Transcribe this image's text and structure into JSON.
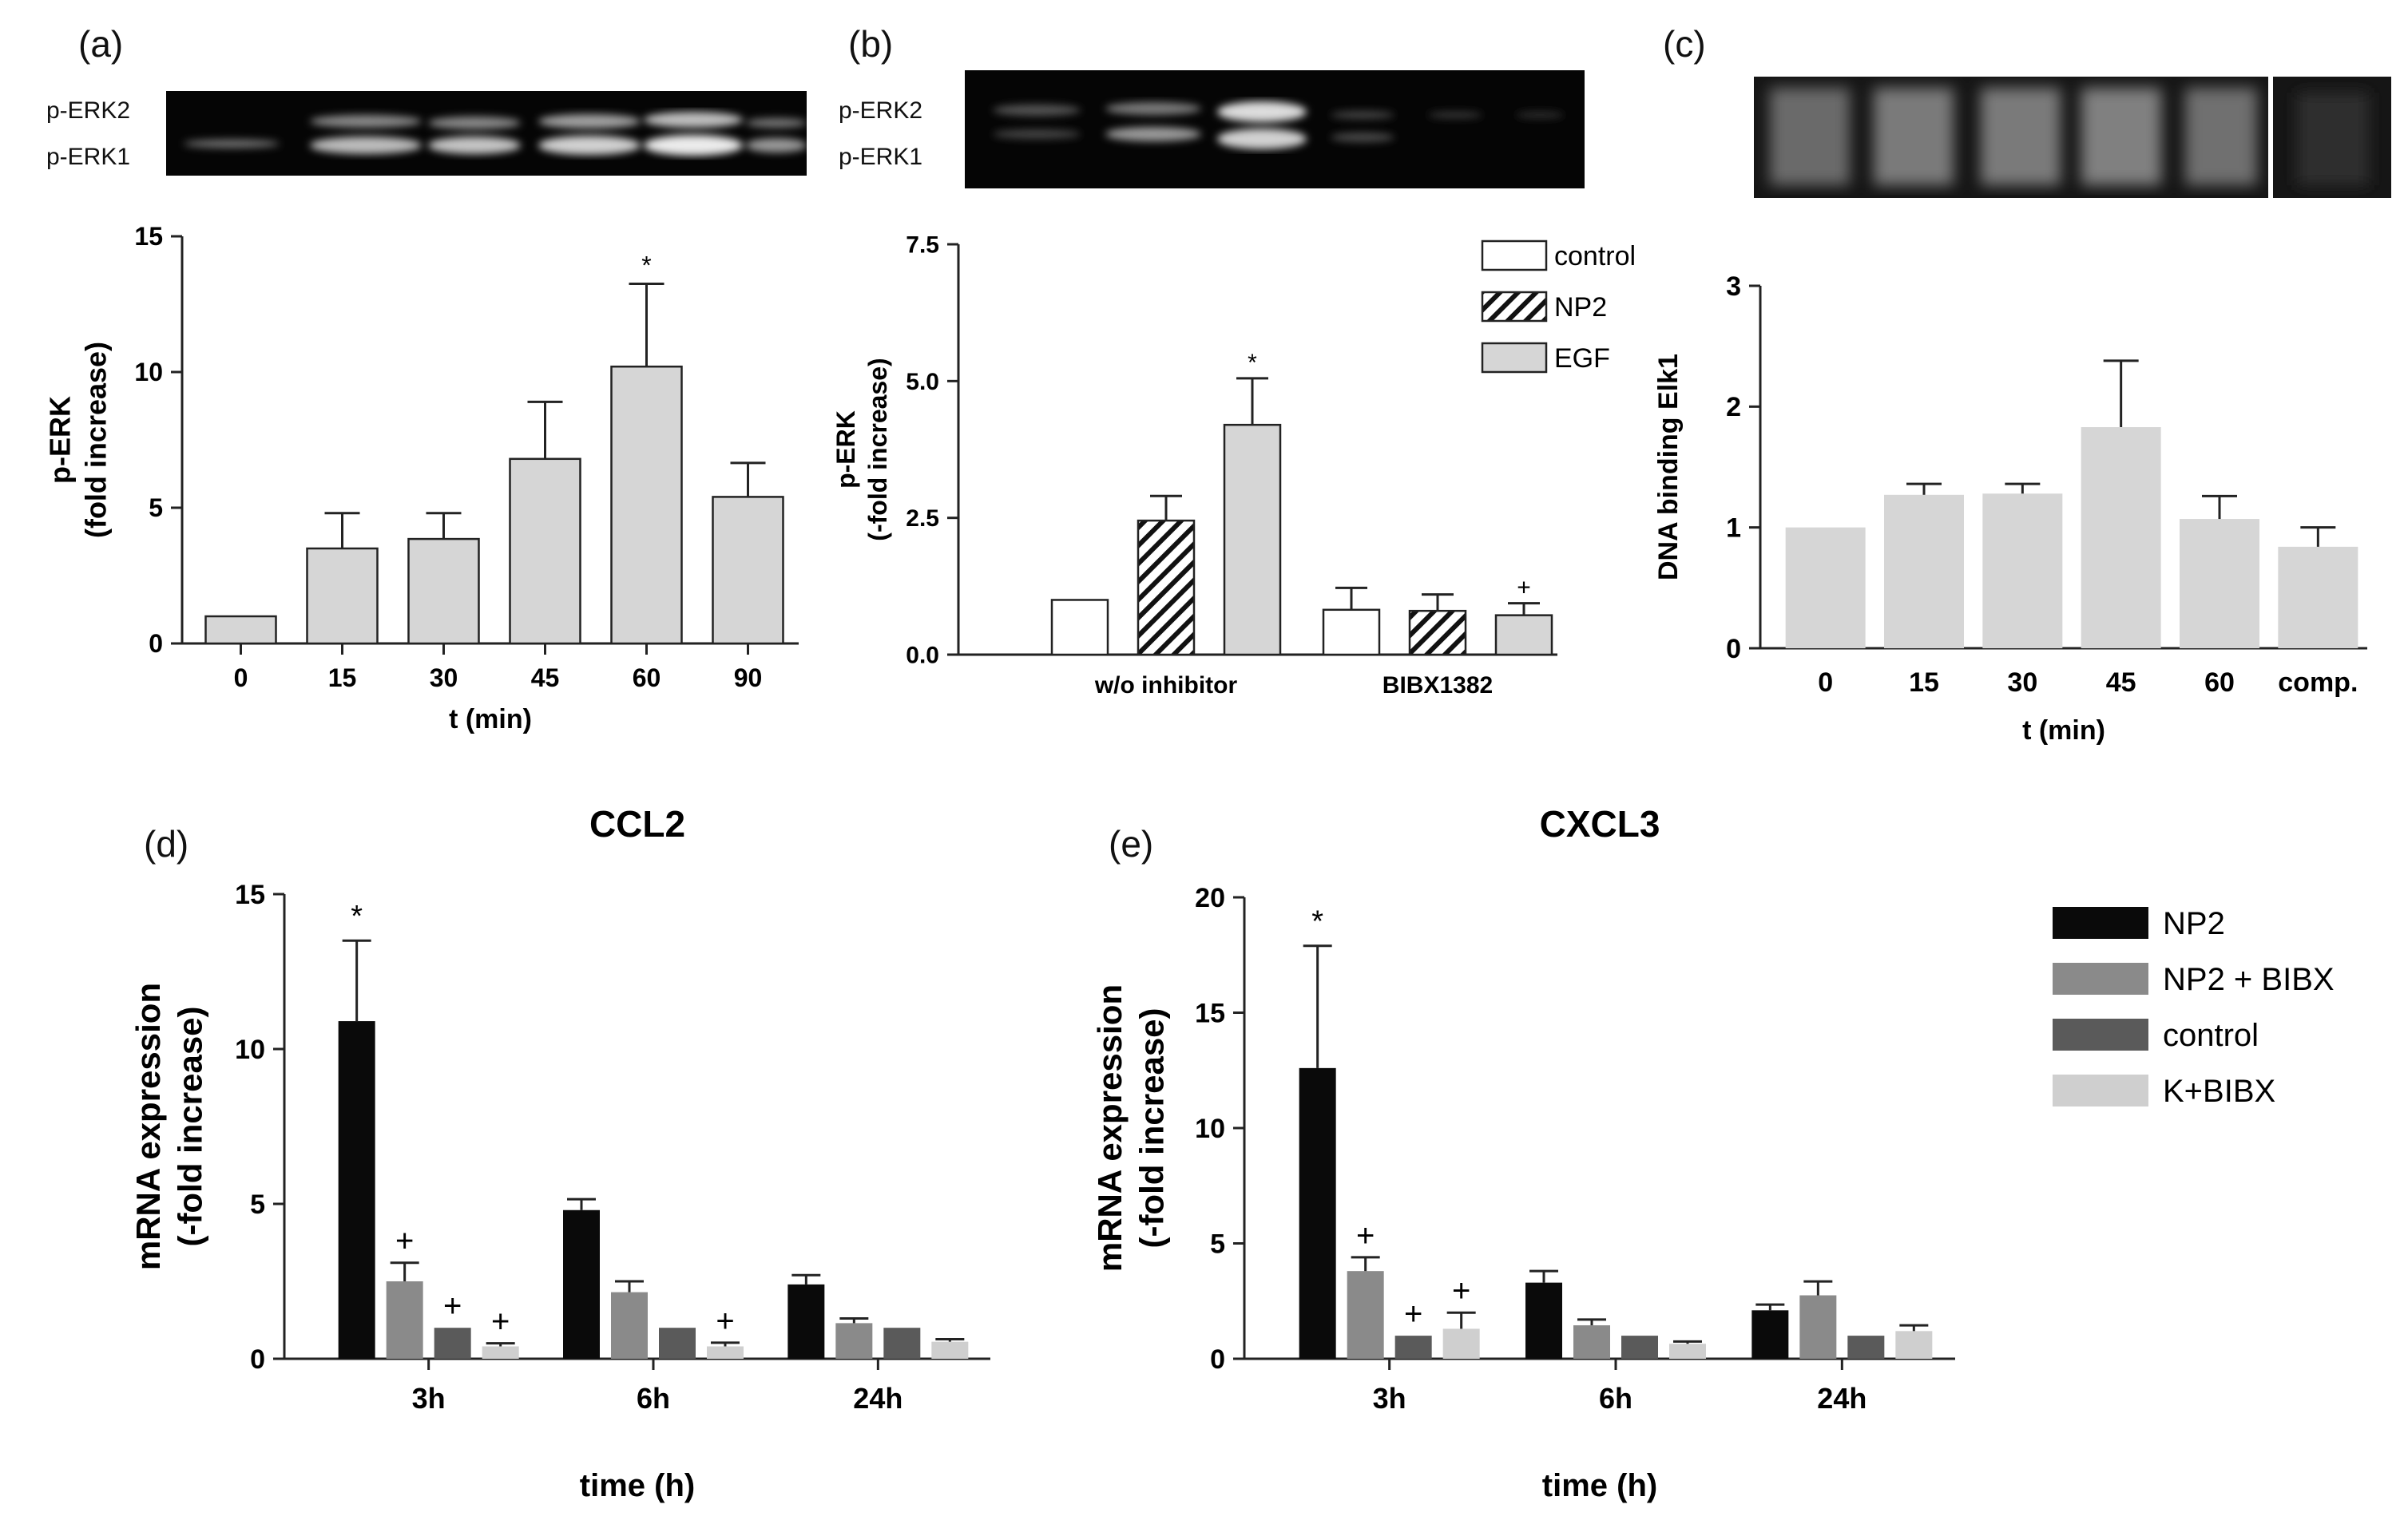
{
  "colors": {
    "axis": "#222222",
    "bar_light": "#d6d6d6",
    "bar_white": "#ffffff",
    "np2_black": "#0a0a0a",
    "np2_bibx": "#8a8a8a",
    "control_dark": "#5a5a5a",
    "k_bibx": "#cfcfcf"
  },
  "panel_a": {
    "label": "(a)",
    "blot_labels": [
      "p-ERK2",
      "p-ERK1"
    ],
    "chart_data": {
      "type": "bar",
      "categories": [
        "0",
        "15",
        "30",
        "45",
        "60",
        "90"
      ],
      "values": [
        1.0,
        3.5,
        3.85,
        6.8,
        10.2,
        5.4
      ],
      "errors": [
        0,
        1.3,
        0.95,
        2.1,
        3.05,
        1.25
      ],
      "annotations": [
        "",
        "",
        "",
        "",
        "*",
        ""
      ],
      "xlabel": "t (min)",
      "ylabel_lines": [
        "p-ERK",
        "(fold increase)"
      ],
      "ylim": [
        0,
        15
      ],
      "yticks": [
        "0",
        "5",
        "10",
        "15"
      ],
      "bar_color": "#d6d6d6"
    }
  },
  "panel_b": {
    "label": "(b)",
    "blot_labels": [
      "p-ERK2",
      "p-ERK1"
    ],
    "chart_data": {
      "type": "bar",
      "categories": [
        "w/o inhibitor",
        "BIBX1382"
      ],
      "series": [
        {
          "name": "control",
          "values": [
            1.0,
            0.82
          ],
          "errors": [
            0,
            0.4
          ],
          "annotations": [
            "",
            ""
          ]
        },
        {
          "name": "NP2",
          "values": [
            2.45,
            0.8
          ],
          "errors": [
            0.45,
            0.3
          ],
          "annotations": [
            "",
            ""
          ]
        },
        {
          "name": "EGF",
          "values": [
            4.2,
            0.72
          ],
          "errors": [
            0.85,
            0.22
          ],
          "annotations": [
            "*",
            "+"
          ]
        }
      ],
      "ylabel_lines": [
        "p-ERK",
        "(-fold increase)"
      ],
      "ylim": [
        0,
        7.5
      ],
      "yticks": [
        "0.0",
        "2.5",
        "5.0",
        "7.5"
      ],
      "legend": [
        "control",
        "NP2",
        "EGF"
      ]
    }
  },
  "panel_c": {
    "label": "(c)",
    "chart_data": {
      "type": "bar",
      "categories": [
        "0",
        "15",
        "30",
        "45",
        "60",
        "comp."
      ],
      "values": [
        1.0,
        1.27,
        1.28,
        1.83,
        1.07,
        0.84
      ],
      "errors": [
        0,
        0.09,
        0.08,
        0.55,
        0.19,
        0.16
      ],
      "xlabel": "t (min)",
      "ylabel_lines": [
        "DNA binding Elk1"
      ],
      "ylim": [
        0,
        3
      ],
      "yticks": [
        "0",
        "1",
        "2",
        "3"
      ],
      "bar_color": "#d6d6d6"
    }
  },
  "panel_d": {
    "label": "(d)",
    "chart_data": {
      "type": "bar",
      "title": "CCL2",
      "categories": [
        "3h",
        "6h",
        "24h"
      ],
      "series": [
        {
          "name": "NP2",
          "values": [
            10.9,
            4.8,
            2.4
          ],
          "errors": [
            2.6,
            0.35,
            0.3
          ],
          "annotations": [
            "*",
            "",
            ""
          ]
        },
        {
          "name": "NP2 + BIBX",
          "values": [
            2.5,
            2.15,
            1.15
          ],
          "errors": [
            0.6,
            0.35,
            0.15
          ],
          "annotations": [
            "+",
            "",
            ""
          ]
        },
        {
          "name": "control",
          "values": [
            1.0,
            1.0,
            1.0
          ],
          "errors": [
            0,
            0,
            0
          ],
          "annotations": [
            "+",
            "",
            ""
          ]
        },
        {
          "name": "K+BIBX",
          "values": [
            0.4,
            0.4,
            0.55
          ],
          "errors": [
            0.1,
            0.12,
            0.08
          ],
          "annotations": [
            "+",
            "+",
            ""
          ]
        }
      ],
      "xlabel": "time (h)",
      "ylabel_lines": [
        "mRNA expression",
        "(-fold increase)"
      ],
      "ylim": [
        0,
        15
      ],
      "yticks": [
        "0",
        "5",
        "10",
        "15"
      ]
    }
  },
  "panel_e": {
    "label": "(e)",
    "chart_data": {
      "type": "bar",
      "title": "CXCL3",
      "categories": [
        "3h",
        "6h",
        "24h"
      ],
      "series": [
        {
          "name": "NP2",
          "values": [
            12.6,
            3.3,
            2.1
          ],
          "errors": [
            5.3,
            0.5,
            0.25
          ],
          "annotations": [
            "*",
            "",
            ""
          ]
        },
        {
          "name": "NP2 + BIBX",
          "values": [
            3.8,
            1.45,
            2.75
          ],
          "errors": [
            0.6,
            0.25,
            0.6
          ],
          "annotations": [
            "+",
            "",
            ""
          ]
        },
        {
          "name": "control",
          "values": [
            1.0,
            1.0,
            1.0
          ],
          "errors": [
            0,
            0,
            0
          ],
          "annotations": [
            "+",
            "",
            ""
          ]
        },
        {
          "name": "K+BIBX",
          "values": [
            1.3,
            0.65,
            1.2
          ],
          "errors": [
            0.7,
            0.1,
            0.25
          ],
          "annotations": [
            "+",
            "",
            ""
          ]
        }
      ],
      "xlabel": "time (h)",
      "ylabel_lines": [
        "mRNA expression",
        "(-fold increase)"
      ],
      "ylim": [
        0,
        20
      ],
      "yticks": [
        "0",
        "5",
        "10",
        "15",
        "20"
      ]
    }
  },
  "legend_de": [
    "NP2",
    "NP2 + BIBX",
    "control",
    "K+BIBX"
  ]
}
